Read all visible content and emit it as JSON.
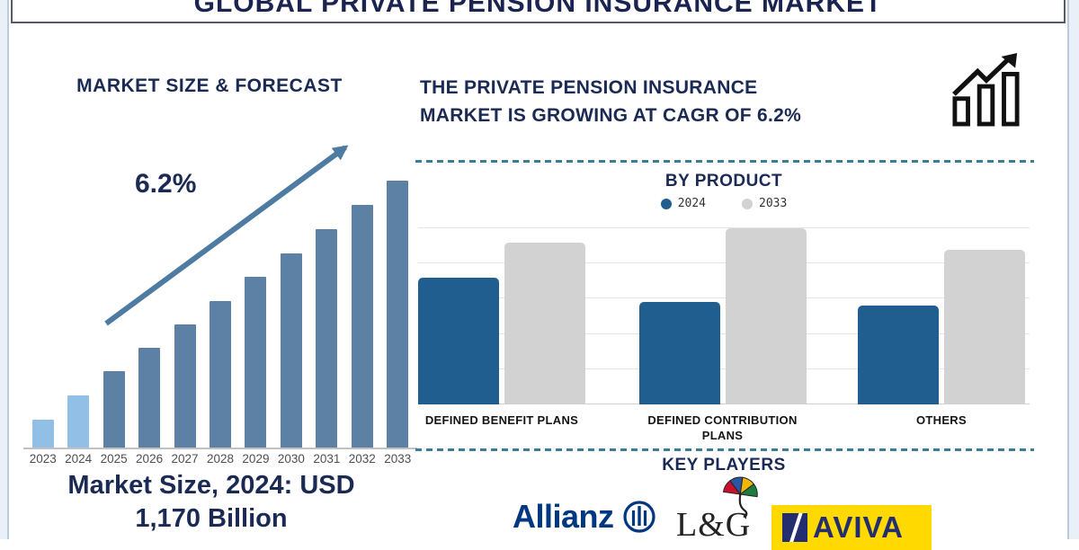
{
  "title": "GLOBAL PRIVATE PENSION INSURANCE MARKET",
  "left_section": {
    "heading": "MARKET SIZE & FORECAST",
    "cagr_label": "6.2%",
    "market_size_line1": "Market Size, 2024: USD",
    "market_size_line2": "1,170 Billion"
  },
  "right_section": {
    "heading_line1": "THE PRIVATE PENSION INSURANCE",
    "heading_line2": "MARKET IS GROWING AT CAGR OF 6.2%",
    "by_product": {
      "heading": "BY PRODUCT"
    },
    "key_players": {
      "heading": "KEY PLAYERS",
      "players": [
        "Allianz",
        "L&G",
        "AVIVA"
      ]
    }
  },
  "colors": {
    "navy_text": "#1b2a55",
    "light_blue_bar": "#92bfe6",
    "steel_blue_bar": "#5d80a5",
    "arrow_blue": "#4e7ba1",
    "chart_blue": "#215e90",
    "chart_gray": "#d2d2d2",
    "divider_teal": "#3c7d99",
    "allianz_blue": "#003781",
    "aviva_yellow": "#ffd900",
    "aviva_navy": "#232d70"
  },
  "chart_data": [
    {
      "type": "bar",
      "title": "MARKET SIZE & FORECAST",
      "categories": [
        "2023",
        "2024",
        "2025",
        "2026",
        "2027",
        "2028",
        "2029",
        "2030",
        "2031",
        "2032",
        "2033"
      ],
      "values": [
        10.4,
        19.5,
        28.6,
        37.4,
        46.1,
        54.9,
        64.0,
        72.7,
        81.8,
        90.9,
        100
      ],
      "value_note": "stylized bars with no value axis; values are relative heights (2033 = 100)",
      "annotations": [
        "6.2%",
        "Market Size, 2024: USD 1,170 Billion"
      ],
      "highlight_note": "2023 and 2024 bars light blue; 2025-2033 steel blue; upward trend arrow labeled 6.2%",
      "xlabel": "",
      "ylabel": "",
      "grid": false
    },
    {
      "type": "bar",
      "title": "BY PRODUCT",
      "categories": [
        "DEFINED BENEFIT PLANS",
        "DEFINED CONTRIBUTION PLANS",
        "OTHERS"
      ],
      "series": [
        {
          "name": "2024",
          "color": "#215e90",
          "values": [
            3.6,
            2.9,
            2.8
          ]
        },
        {
          "name": "2033",
          "color": "#d2d2d2",
          "values": [
            4.6,
            5.0,
            4.4
          ]
        }
      ],
      "value_note": "no value axis shown; values estimated in gridline units (5 gridlines above baseline)",
      "ylim": [
        0,
        5.1
      ],
      "grid": true,
      "legend_position": "top"
    }
  ]
}
